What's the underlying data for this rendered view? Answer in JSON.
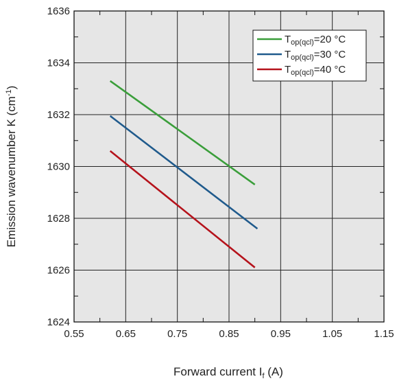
{
  "chart_data": {
    "type": "line",
    "title": "",
    "xlabel_main": "Forward current I",
    "xlabel_sub": "f",
    "xlabel_tail": " (A)",
    "ylabel_main": "Emission wavenumber K (cm",
    "ylabel_sup": "-1",
    "ylabel_tail": ")",
    "xlim": [
      0.55,
      1.15
    ],
    "ylim": [
      1624,
      1636
    ],
    "xticks": [
      0.55,
      0.65,
      0.75,
      0.85,
      0.95,
      1.05,
      1.15
    ],
    "xtick_labels": [
      "0.55",
      "0.65",
      "0.75",
      "0.85",
      "0.95",
      "1.05",
      "1.15"
    ],
    "yticks": [
      1624,
      1626,
      1628,
      1630,
      1632,
      1634,
      1636
    ],
    "ytick_labels": [
      "1624",
      "1626",
      "1628",
      "1630",
      "1632",
      "1634",
      "1636"
    ],
    "grid": true,
    "legend_position": "top-right",
    "series": [
      {
        "name_main": "T",
        "name_sub": "op(qcl)",
        "name_tail": "=20 °C",
        "color": "#3a9e3a",
        "x": [
          0.62,
          0.9
        ],
        "y": [
          1633.3,
          1629.3
        ]
      },
      {
        "name_main": "T",
        "name_sub": "op(qcl)",
        "name_tail": "=30 °C",
        "color": "#1f5a8c",
        "x": [
          0.62,
          0.905
        ],
        "y": [
          1631.95,
          1627.6
        ]
      },
      {
        "name_main": "T",
        "name_sub": "op(qcl)",
        "name_tail": "=40 °C",
        "color": "#b5121b",
        "x": [
          0.62,
          0.9
        ],
        "y": [
          1630.6,
          1626.1
        ]
      }
    ]
  }
}
